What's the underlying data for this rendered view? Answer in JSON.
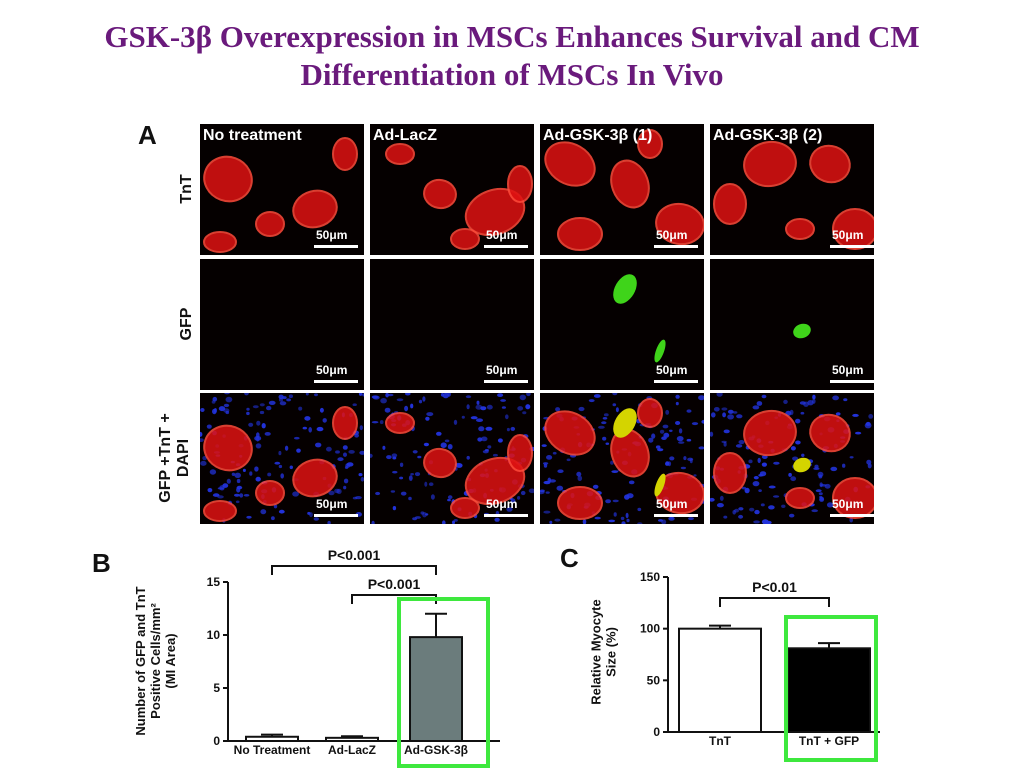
{
  "title": {
    "line1": "GSK-3β Overexpression in MSCs Enhances Survival and CM",
    "line2": "Differentiation of MSCs In Vivo"
  },
  "panel_a": {
    "letter": "A",
    "columns": [
      "No treatment",
      "Ad-LacZ",
      "Ad-GSK-3β (1)",
      "Ad-GSK-3β (2)"
    ],
    "rows": [
      "TnT",
      "GFP",
      "GFP +TnT +\nDAPI"
    ],
    "scale_bar": "50μm",
    "colors": {
      "tnt": "#e01212",
      "gfp": "#3fd41a",
      "dapi": "#2233dd",
      "merge": "#d4d400"
    }
  },
  "chart_data": [
    {
      "panel": "B",
      "type": "bar",
      "categories": [
        "No Treatment",
        "Ad-LacZ",
        "Ad-GSK-3β"
      ],
      "values": [
        0.4,
        0.3,
        9.8
      ],
      "errors": [
        0.2,
        0.15,
        2.2
      ],
      "bar_colors": [
        "#ffffff",
        "#ffffff",
        "#6b7c7c"
      ],
      "ylabel": "Number of GFP and TnT\nPositive Cells/mm²\n(MI Area)",
      "ylim": [
        0,
        15
      ],
      "yticks": [
        0,
        5,
        10,
        15
      ],
      "highlight": {
        "category": "Ad-GSK-3β",
        "color": "#3ee83e"
      },
      "annotations": [
        {
          "text": "P<0.001",
          "from": "No Treatment",
          "to": "Ad-GSK-3β"
        },
        {
          "text": "P<0.001",
          "from": "Ad-LacZ",
          "to": "Ad-GSK-3β"
        }
      ]
    },
    {
      "panel": "C",
      "type": "bar",
      "categories": [
        "TnT",
        "TnT + GFP"
      ],
      "values": [
        100,
        81
      ],
      "errors": [
        3,
        5
      ],
      "bar_colors": [
        "#ffffff",
        "#000000"
      ],
      "ylabel": "Relative Myocyte\nSize (%)",
      "ylim": [
        0,
        150
      ],
      "yticks": [
        0,
        50,
        100,
        150
      ],
      "highlight": {
        "category": "TnT + GFP",
        "color": "#3ee83e"
      },
      "annotations": [
        {
          "text": "P<0.01",
          "from": "TnT",
          "to": "TnT + GFP"
        }
      ]
    }
  ]
}
